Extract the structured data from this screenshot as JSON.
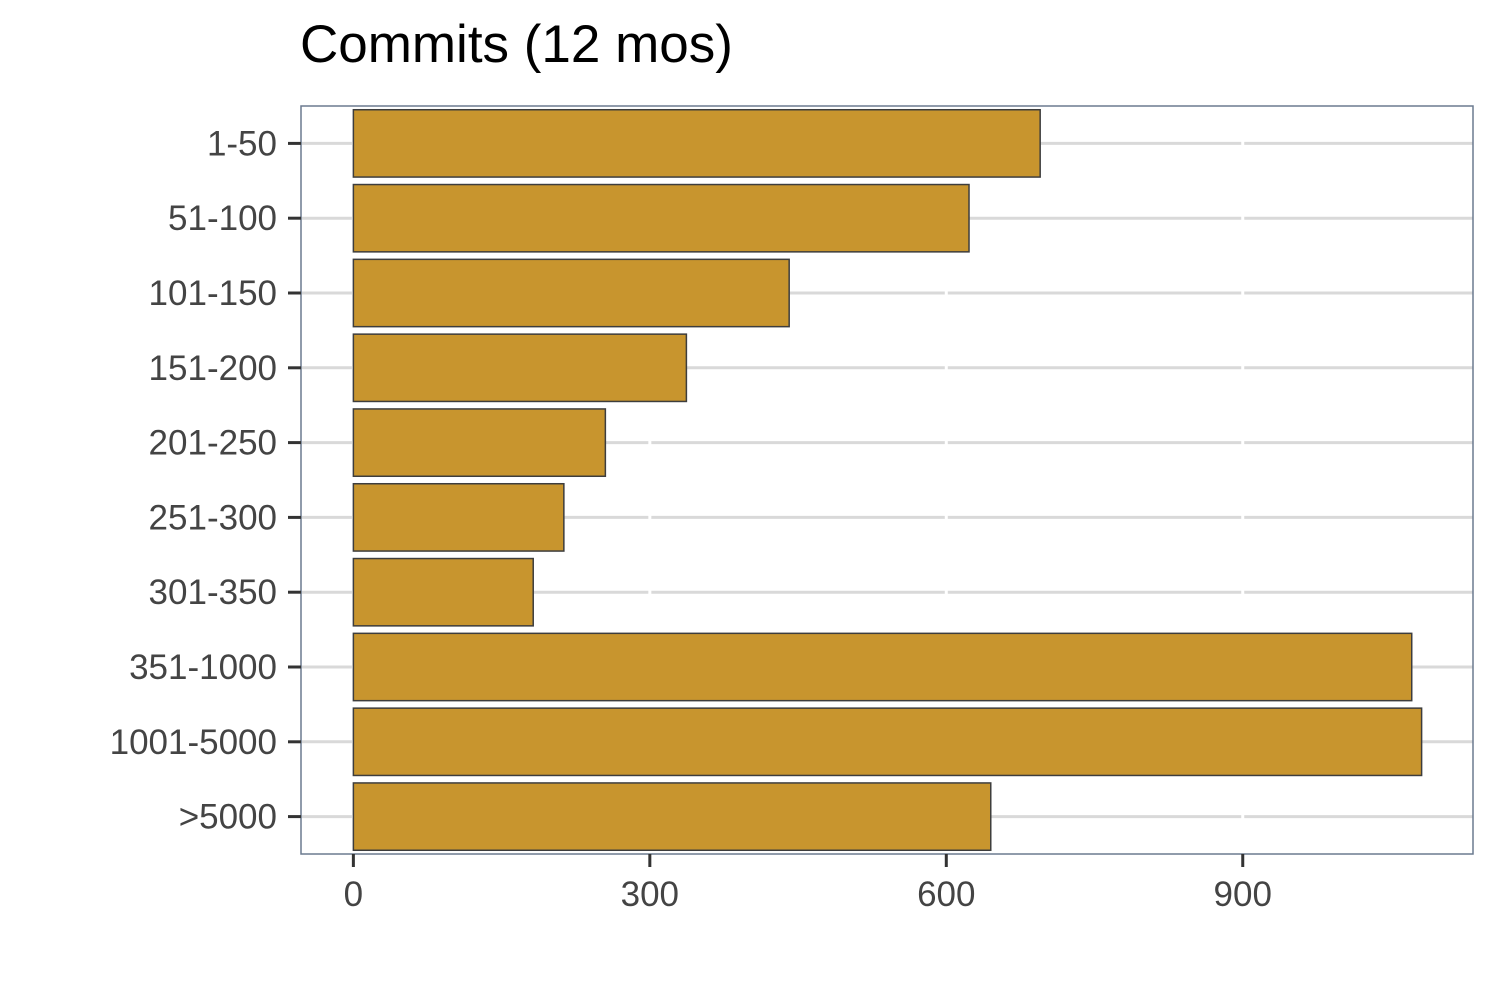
{
  "chart_data": {
    "type": "bar",
    "orientation": "horizontal",
    "title": "Commits (12 mos)",
    "xlabel": "",
    "ylabel": "",
    "categories": [
      "1-50",
      "51-100",
      "101-150",
      "151-200",
      "201-250",
      "251-300",
      "301-350",
      "351-1000",
      "1001-5000",
      ">5000"
    ],
    "values": [
      695,
      623,
      441,
      337,
      255,
      213,
      182,
      1071,
      1081,
      645
    ],
    "xlim": [
      -53,
      1133
    ],
    "xticks": [
      0,
      300,
      600,
      900
    ],
    "xtick_labels": [
      "0",
      "300",
      "600",
      "900"
    ],
    "grid": true,
    "legend": "none",
    "colors": {
      "bar_fill": "#C8952E",
      "bar_stroke": "#3d3d3d",
      "grid": "#d9d9d9",
      "panel_border": "#6b7a8f",
      "tick_text": "#444444"
    }
  }
}
